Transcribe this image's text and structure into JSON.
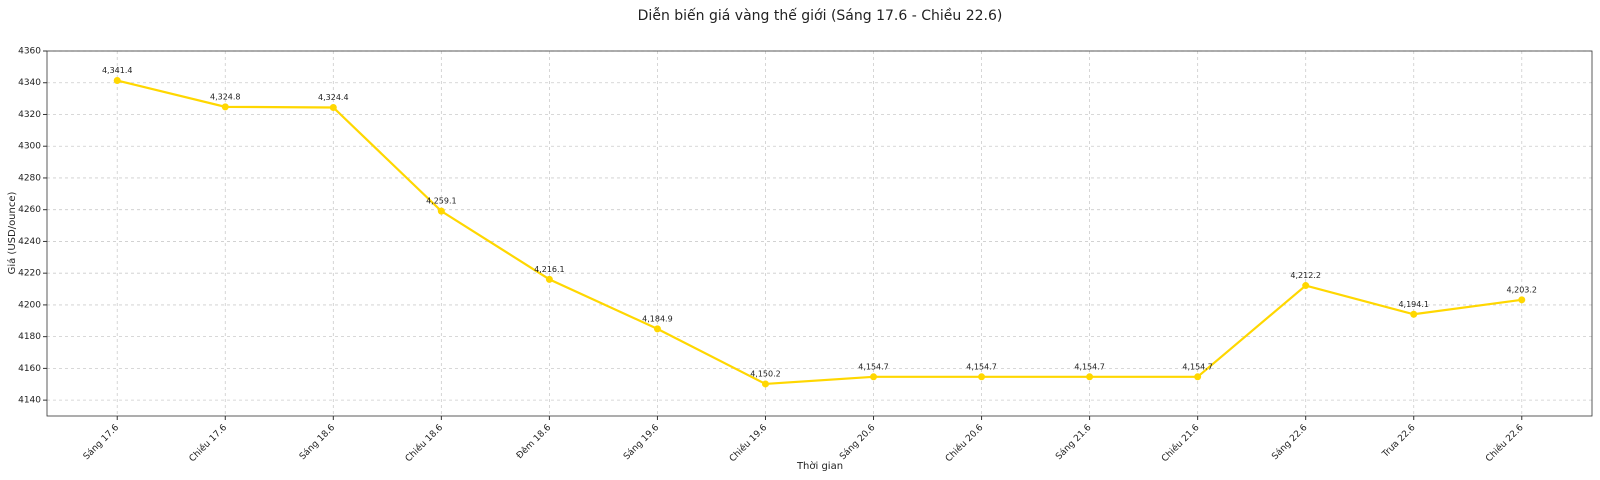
{
  "chart_data": {
    "type": "line",
    "title": "Diễn biến giá vàng thế giới (Sáng 17.6 - Chiều 22.6)",
    "x_label": "Thời gian",
    "y_label": "Giá (USD/ounce)",
    "categories": [
      "Sáng 17.6",
      "Chiều 17.6",
      "Sáng 18.6",
      "Chiều 18.6",
      "Đêm 18.6",
      "Sáng 19.6",
      "Chiều 19.6",
      "Sáng 20.6",
      "Chiều 20.6",
      "Sáng 21.6",
      "Chiều 21.6",
      "Sáng 22.6",
      "Trưa 22.6",
      "Chiều 22.6"
    ],
    "values": [
      4341.4,
      4324.8,
      4324.4,
      4259.1,
      4216.1,
      4184.9,
      4150.2,
      4154.7,
      4154.7,
      4154.7,
      4154.7,
      4212.2,
      4194.1,
      4203.2
    ],
    "value_labels": [
      "4,341.4",
      "4,324.8",
      "4,324.4",
      "4,259.1",
      "4,216.1",
      "4,184.9",
      "4,150.2",
      "4,154.7",
      "4,154.7",
      "4,154.7",
      "4,154.7",
      "4,212.2",
      "4,194.1",
      "4,203.2"
    ],
    "color": "#ffd700",
    "ylim": [
      4130,
      4360
    ],
    "yticks": [
      4140,
      4160,
      4180,
      4200,
      4220,
      4240,
      4260,
      4280,
      4300,
      4320,
      4340,
      4360
    ],
    "grid": true
  }
}
